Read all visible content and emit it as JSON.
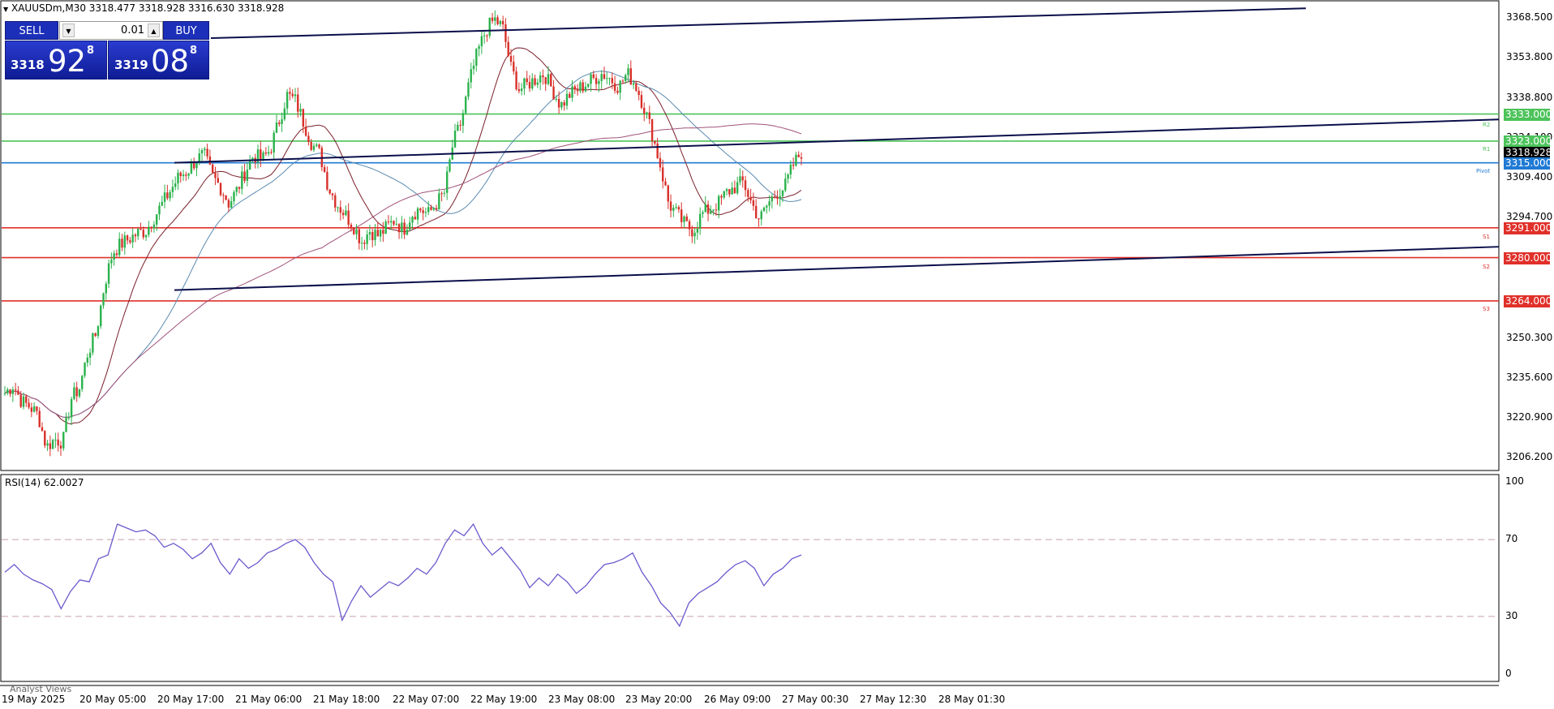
{
  "header": {
    "title_icon": "triangle-down-icon",
    "symbol_line": "XAUUSDm,M30  3318.477 3318.928 3316.630 3318.928"
  },
  "trade_panel": {
    "sell_label": "SELL",
    "buy_label": "BUY",
    "lot_value": "0.01",
    "sell_price": {
      "small": "3318",
      "big": "92",
      "sup": "8"
    },
    "buy_price": {
      "small": "3319",
      "big": "08",
      "sup": "8"
    }
  },
  "price_axis": {
    "labels": [
      "3368.500",
      "3353.800",
      "3338.800",
      "3324.100",
      "3309.400",
      "3294.700",
      "3250.300",
      "3235.600",
      "3220.900",
      "3206.200"
    ]
  },
  "level_tags": [
    {
      "label": "3333.000",
      "price": 3333.0,
      "color": "#4cc35a"
    },
    {
      "label": "3323.000",
      "price": 3323.0,
      "color": "#4cc35a"
    },
    {
      "label": "3318.928",
      "price": 3318.928,
      "color": "#000000"
    },
    {
      "label": "3315.000",
      "price": 3315.0,
      "color": "#1f7ad4"
    },
    {
      "label": "3291.000",
      "price": 3291.0,
      "color": "#e0302a"
    },
    {
      "label": "3280.000",
      "price": 3280.0,
      "color": "#e0302a"
    },
    {
      "label": "3264.000",
      "price": 3264.0,
      "color": "#e0302a"
    }
  ],
  "level_notes": {
    "pivot": "Pivot",
    "s1": "S1",
    "s2": "S2",
    "s3": "S3",
    "r1": "R1",
    "r2": "R2"
  },
  "rsi": {
    "title": "RSI(14) 62.0027",
    "axis_labels": [
      "100",
      "70",
      "30",
      "0"
    ],
    "value": 62.0027,
    "levels": [
      70,
      30
    ]
  },
  "analyst_views": "Analyst Views",
  "time_axis": {
    "labels": [
      "19 May 2025",
      "20 May 05:00",
      "20 May 17:00",
      "21 May 06:00",
      "21 May 18:00",
      "22 May 07:00",
      "22 May 19:00",
      "23 May 08:00",
      "23 May 20:00",
      "26 May 09:00",
      "27 May 00:30",
      "27 May 12:30",
      "28 May 01:30"
    ]
  },
  "colors": {
    "bull": "#2bb24c",
    "bear": "#d8302a",
    "trendline": "#0a0f4a",
    "rsi_line": "#6a5acd",
    "ma_fast": "#7a1f2a",
    "ma_slow": "#5a8ab0"
  },
  "chart_data": {
    "type": "candlestick",
    "symbol": "XAUUSDm",
    "timeframe": "M30",
    "y_range": [
      3199,
      3376
    ],
    "close_path": [
      3230,
      3233,
      3227,
      3225,
      3222,
      3210,
      3213,
      3212,
      3228,
      3232,
      3245,
      3252,
      3270,
      3282,
      3285,
      3287,
      3289,
      3290,
      3295,
      3300,
      3305,
      3310,
      3312,
      3316,
      3318,
      3310,
      3306,
      3300,
      3305,
      3312,
      3318,
      3316,
      3320,
      3330,
      3340,
      3338,
      3330,
      3322,
      3318,
      3306,
      3300,
      3296,
      3292,
      3286,
      3290,
      3288,
      3291,
      3294,
      3290,
      3296,
      3298,
      3296,
      3300,
      3304,
      3322,
      3330,
      3345,
      3356,
      3364,
      3368,
      3365,
      3350,
      3342,
      3344,
      3346,
      3348,
      3342,
      3336,
      3340,
      3342,
      3344,
      3346,
      3348,
      3346,
      3343,
      3348,
      3344,
      3336,
      3326,
      3314,
      3300,
      3296,
      3292,
      3290,
      3296,
      3298,
      3300,
      3304,
      3306,
      3308,
      3300,
      3294,
      3300,
      3304,
      3306,
      3314,
      3319
    ],
    "rsi_path": [
      53,
      57,
      52,
      49,
      47,
      44,
      34,
      43,
      49,
      48,
      60,
      62,
      78,
      76,
      74,
      75,
      72,
      66,
      68,
      65,
      60,
      63,
      68,
      58,
      52,
      60,
      55,
      58,
      63,
      65,
      68,
      70,
      66,
      58,
      52,
      48,
      28,
      38,
      46,
      40,
      44,
      48,
      46,
      50,
      55,
      52,
      58,
      68,
      75,
      72,
      78,
      68,
      62,
      66,
      60,
      54,
      45,
      50,
      46,
      52,
      48,
      42,
      46,
      52,
      57,
      58,
      60,
      63,
      53,
      46,
      37,
      32,
      25,
      37,
      42,
      45,
      48,
      53,
      57,
      59,
      55,
      46,
      52,
      55,
      60,
      62
    ]
  }
}
